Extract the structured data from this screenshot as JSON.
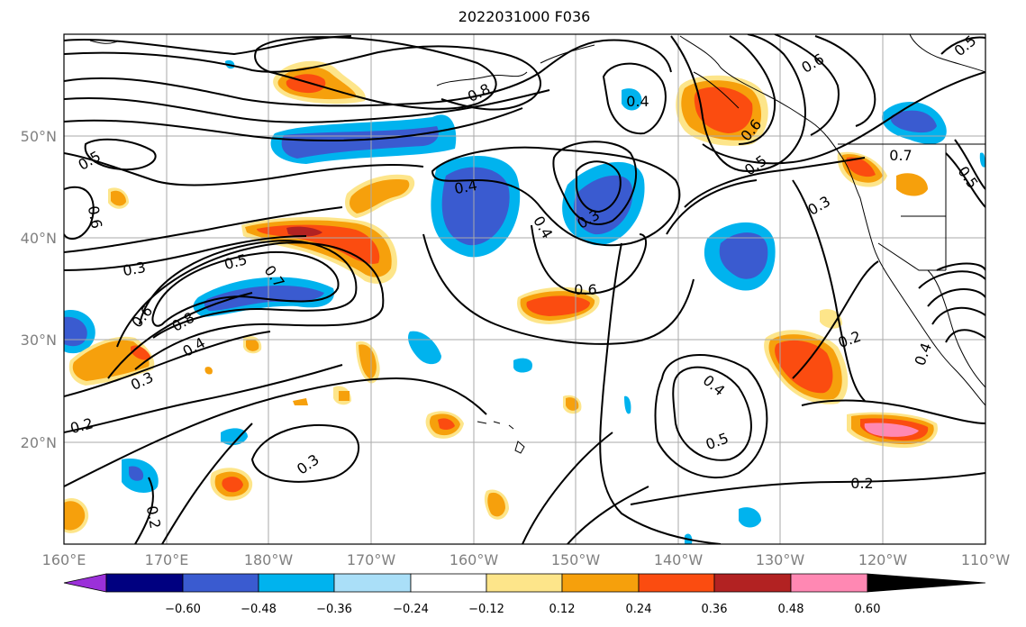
{
  "title": "2022031000 F036",
  "lat_labels": [
    "50°N",
    "40°N",
    "30°N",
    "20°N"
  ],
  "lon_labels": [
    "160°E",
    "170°E",
    "180°W",
    "170°W",
    "160°W",
    "150°W",
    "140°W",
    "130°W",
    "120°W",
    "110°W"
  ],
  "colorbar": {
    "tick_labels": [
      "−0.60",
      "−0.48",
      "−0.36",
      "−0.24",
      "−0.12",
      "0.12",
      "0.24",
      "0.36",
      "0.48",
      "0.60"
    ],
    "colors": [
      "#9b30d9",
      "#000080",
      "#3a5bd0",
      "#00b3ee",
      "#aadff8",
      "#ffffff",
      "#fde58a",
      "#f6a00c",
      "#fb4c10",
      "#b22222",
      "#ff88b3"
    ]
  },
  "contour_labels": [
    {
      "text": "0.8",
      "id": "c08a"
    },
    {
      "text": "0.4",
      "id": "c04a"
    },
    {
      "text": "0.6",
      "id": "c06a"
    },
    {
      "text": "0.5",
      "id": "c05a"
    },
    {
      "text": "0.6",
      "id": "c06b"
    },
    {
      "text": "0.4",
      "id": "c04b"
    },
    {
      "text": "0.3",
      "id": "c03a"
    },
    {
      "text": "0.4",
      "id": "c04c"
    },
    {
      "text": "0.3",
      "id": "c03b"
    },
    {
      "text": "0.5",
      "id": "c05b"
    },
    {
      "text": "0.7",
      "id": "c07a"
    },
    {
      "text": "0.6",
      "id": "c06c"
    },
    {
      "text": "0.8",
      "id": "c08b"
    },
    {
      "text": "0.4",
      "id": "c04d"
    },
    {
      "text": "0.3",
      "id": "c03c"
    },
    {
      "text": "0.2",
      "id": "c02a"
    },
    {
      "text": "0.3",
      "id": "c03d"
    },
    {
      "text": "0.2",
      "id": "c02b"
    },
    {
      "text": "0.6",
      "id": "c06d"
    },
    {
      "text": "0.4",
      "id": "c04e"
    },
    {
      "text": "0.5",
      "id": "c05c"
    },
    {
      "text": "0.2",
      "id": "c02c"
    },
    {
      "text": "0.5",
      "id": "c05d"
    },
    {
      "text": "0.7",
      "id": "c07b"
    },
    {
      "text": "0.3",
      "id": "c03e"
    },
    {
      "text": "0.6",
      "id": "c06e"
    },
    {
      "text": "0.2",
      "id": "c02d"
    },
    {
      "text": "0.4",
      "id": "c04f"
    },
    {
      "text": "0.5",
      "id": "c05e"
    },
    {
      "text": "0.5",
      "id": "c05f"
    }
  ]
}
